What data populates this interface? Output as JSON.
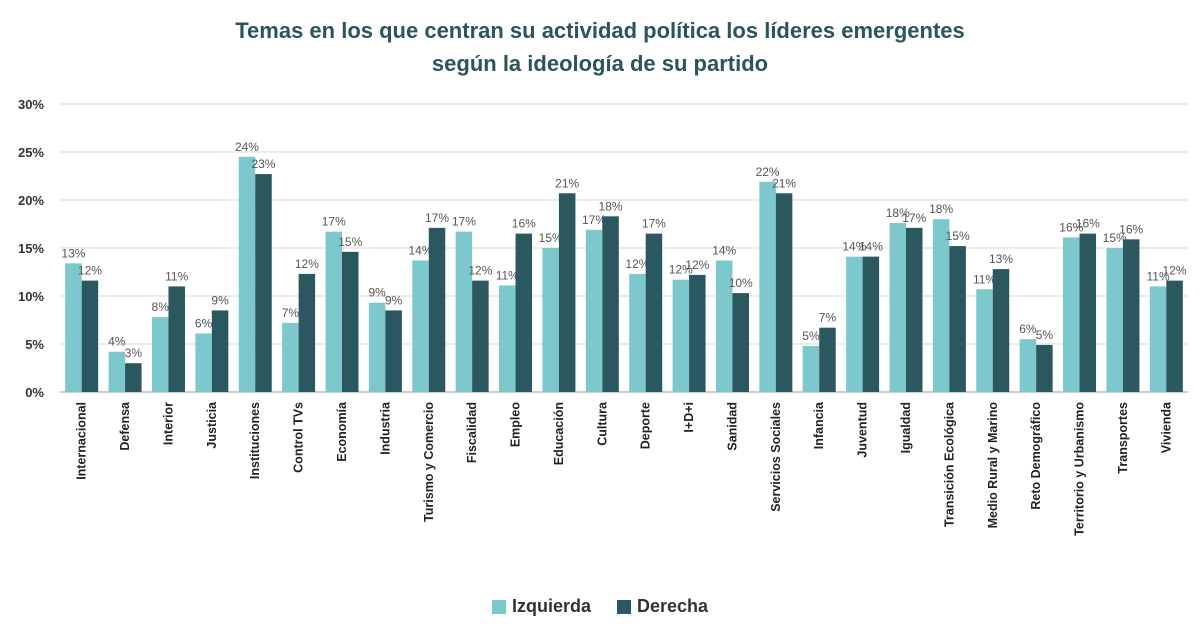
{
  "chart_data": {
    "type": "bar",
    "title_line1": "Temas en los que centran su actividad política los líderes emergentes",
    "title_line2": "según la ideología de su partido",
    "ylim": [
      0,
      30
    ],
    "yticks": [
      "0%",
      "5%",
      "10%",
      "15%",
      "20%",
      "25%",
      "30%"
    ],
    "categories": [
      "Internacional",
      "Defensa",
      "Interior",
      "Justicia",
      "Instituciones",
      "Control TVs",
      "Economía",
      "Industria",
      "Turismo y Comercio",
      "Fiscalidad",
      "Empleo",
      "Educación",
      "Cultura",
      "Deporte",
      "I+D+i",
      "Sanidad",
      "Servicios Sociales",
      "Infancia",
      "Juventud",
      "Igualdad",
      "Transición Ecológica",
      "Medio Rural y Marino",
      "Reto Demográfico",
      "Territorio y Urbanismo",
      "Transportes",
      "Vivienda"
    ],
    "series": [
      {
        "name": "Izquierda",
        "color": "#7cc8cc",
        "values": [
          13.4,
          4.2,
          7.8,
          6.1,
          24.5,
          7.2,
          16.7,
          9.3,
          13.7,
          16.7,
          11.1,
          15.0,
          16.9,
          12.3,
          11.7,
          13.7,
          21.9,
          4.8,
          14.1,
          17.6,
          18.0,
          10.7,
          5.5,
          16.1,
          15.0,
          11.0
        ],
        "labels": [
          "13%",
          "4%",
          "8%",
          "6%",
          "24%",
          "7%",
          "17%",
          "9%",
          "14%",
          "17%",
          "11%",
          "15%",
          "17%",
          "12%",
          "12%",
          "14%",
          "22%",
          "5%",
          "14%",
          "18%",
          "18%",
          "11%",
          "6%",
          "16%",
          "15%",
          "11%"
        ]
      },
      {
        "name": "Derecha",
        "color": "#2b575e",
        "values": [
          11.6,
          3.0,
          11.0,
          8.5,
          22.7,
          12.3,
          14.6,
          8.5,
          17.1,
          11.6,
          16.5,
          20.7,
          18.3,
          16.5,
          12.2,
          10.3,
          20.7,
          6.7,
          14.1,
          17.1,
          15.2,
          12.8,
          4.9,
          16.5,
          15.9,
          11.6
        ],
        "labels": [
          "12%",
          "3%",
          "11%",
          "9%",
          "23%",
          "12%",
          "15%",
          "9%",
          "17%",
          "12%",
          "16%",
          "21%",
          "18%",
          "17%",
          "12%",
          "10%",
          "21%",
          "7%",
          "14%",
          "17%",
          "15%",
          "13%",
          "5%",
          "16%",
          "16%",
          "12%"
        ]
      }
    ],
    "grid": true,
    "legend_position": "bottom"
  }
}
